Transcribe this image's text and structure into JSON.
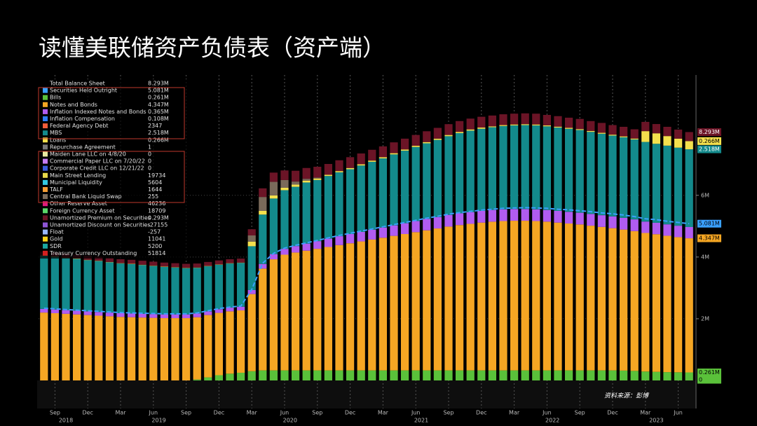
{
  "chart_data": {
    "type": "stacked_bar",
    "title": "读懂美联储资产负债表（资产端）",
    "source": "资料来源：彭博",
    "categories": [
      "2018-08",
      "2018-09",
      "2018-10",
      "2018-11",
      "2018-12",
      "2019-01",
      "2019-02",
      "2019-03",
      "2019-04",
      "2019-05",
      "2019-06",
      "2019-07",
      "2019-08",
      "2019-09",
      "2019-10",
      "2019-11",
      "2019-12",
      "2020-01",
      "2020-02",
      "2020-03",
      "2020-04",
      "2020-05",
      "2020-06",
      "2020-07",
      "2020-08",
      "2020-09",
      "2020-10",
      "2020-11",
      "2020-12",
      "2021-01",
      "2021-02",
      "2021-03",
      "2021-04",
      "2021-05",
      "2021-06",
      "2021-07",
      "2021-08",
      "2021-09",
      "2021-10",
      "2021-11",
      "2021-12",
      "2022-01",
      "2022-02",
      "2022-03",
      "2022-04",
      "2022-05",
      "2022-06",
      "2022-07",
      "2022-08",
      "2022-09",
      "2022-10",
      "2022-11",
      "2022-12",
      "2023-01",
      "2023-02",
      "2023-03",
      "2023-04",
      "2023-05",
      "2023-06",
      "2023-07"
    ],
    "series": [
      {
        "color": "#5ac13a",
        "end_label": "0.261M",
        "values": [
          0,
          0,
          0,
          0,
          0,
          0,
          0,
          0,
          0,
          0,
          0,
          0,
          0,
          0,
          0.03,
          0.1,
          0.17,
          0.22,
          0.25,
          0.3,
          0.326,
          0.326,
          0.326,
          0.326,
          0.326,
          0.326,
          0.326,
          0.326,
          0.326,
          0.326,
          0.326,
          0.326,
          0.326,
          0.326,
          0.326,
          0.326,
          0.326,
          0.326,
          0.326,
          0.326,
          0.326,
          0.326,
          0.326,
          0.326,
          0.326,
          0.326,
          0.326,
          0.326,
          0.326,
          0.326,
          0.326,
          0.326,
          0.326,
          0.32,
          0.31,
          0.29,
          0.28,
          0.27,
          0.265,
          0.261
        ]
      },
      {
        "color": "#f5a623",
        "end_label": "4.347M",
        "values": [
          2.2,
          2.18,
          2.16,
          2.14,
          2.12,
          2.1,
          2.08,
          2.06,
          2.05,
          2.04,
          2.03,
          2.02,
          2.02,
          2.02,
          2.02,
          2.02,
          2.02,
          2.02,
          2.02,
          2.5,
          3.3,
          3.6,
          3.75,
          3.82,
          3.88,
          3.94,
          4.0,
          4.06,
          4.12,
          4.18,
          4.24,
          4.3,
          4.36,
          4.42,
          4.48,
          4.54,
          4.6,
          4.66,
          4.71,
          4.75,
          4.79,
          4.82,
          4.84,
          4.85,
          4.85,
          4.84,
          4.82,
          4.79,
          4.76,
          4.73,
          4.69,
          4.65,
          4.61,
          4.57,
          4.53,
          4.49,
          4.46,
          4.42,
          4.38,
          4.347
        ]
      },
      {
        "color": "#b05cf0",
        "values": [
          0.12,
          0.12,
          0.12,
          0.12,
          0.12,
          0.12,
          0.12,
          0.12,
          0.12,
          0.12,
          0.12,
          0.12,
          0.12,
          0.12,
          0.12,
          0.12,
          0.12,
          0.12,
          0.12,
          0.13,
          0.15,
          0.17,
          0.19,
          0.21,
          0.23,
          0.25,
          0.27,
          0.29,
          0.3,
          0.31,
          0.32,
          0.33,
          0.34,
          0.35,
          0.36,
          0.37,
          0.37,
          0.38,
          0.38,
          0.38,
          0.38,
          0.38,
          0.38,
          0.38,
          0.38,
          0.38,
          0.38,
          0.38,
          0.38,
          0.38,
          0.38,
          0.38,
          0.38,
          0.38,
          0.38,
          0.37,
          0.37,
          0.37,
          0.37,
          0.365
        ]
      },
      {
        "color": "#138a8c",
        "end_label": "2.518M",
        "values": [
          1.72,
          1.71,
          1.69,
          1.68,
          1.66,
          1.65,
          1.63,
          1.61,
          1.6,
          1.58,
          1.56,
          1.54,
          1.52,
          1.5,
          1.48,
          1.46,
          1.44,
          1.43,
          1.42,
          1.42,
          1.6,
          1.8,
          1.9,
          1.92,
          1.98,
          1.98,
          2.03,
          2.07,
          2.1,
          2.15,
          2.2,
          2.24,
          2.3,
          2.35,
          2.4,
          2.45,
          2.5,
          2.55,
          2.6,
          2.64,
          2.66,
          2.68,
          2.7,
          2.71,
          2.72,
          2.72,
          2.71,
          2.7,
          2.69,
          2.68,
          2.66,
          2.64,
          2.62,
          2.61,
          2.59,
          2.58,
          2.56,
          2.55,
          2.53,
          2.518
        ]
      },
      {
        "color": "#f4e04d",
        "end_label": "0.266M",
        "values": [
          0.01,
          0.01,
          0.01,
          0.01,
          0.01,
          0.01,
          0.01,
          0.01,
          0.01,
          0.01,
          0.01,
          0.01,
          0.01,
          0.01,
          0.01,
          0.01,
          0.01,
          0.01,
          0.01,
          0.15,
          0.12,
          0.1,
          0.08,
          0.07,
          0.06,
          0.05,
          0.04,
          0.04,
          0.04,
          0.04,
          0.04,
          0.04,
          0.04,
          0.04,
          0.04,
          0.04,
          0.04,
          0.04,
          0.04,
          0.04,
          0.04,
          0.03,
          0.03,
          0.03,
          0.03,
          0.03,
          0.03,
          0.03,
          0.03,
          0.03,
          0.03,
          0.03,
          0.03,
          0.03,
          0.03,
          0.35,
          0.34,
          0.31,
          0.29,
          0.266
        ]
      },
      {
        "color": "#7a6a5a",
        "values": [
          0,
          0,
          0,
          0,
          0,
          0,
          0,
          0,
          0,
          0,
          0,
          0,
          0,
          0,
          0,
          0,
          0,
          0,
          0,
          0.2,
          0.45,
          0.44,
          0.25,
          0.1,
          0.06,
          0.03,
          0,
          0,
          0,
          0,
          0,
          0,
          0,
          0,
          0,
          0,
          0,
          0,
          0,
          0,
          0,
          0,
          0,
          0,
          0,
          0,
          0,
          0,
          0,
          0,
          0,
          0,
          0,
          0,
          0,
          0,
          0,
          0,
          0,
          0
        ]
      },
      {
        "color": "#6b1426",
        "end_label": "8.293M",
        "values": [
          0.13,
          0.13,
          0.13,
          0.13,
          0.13,
          0.13,
          0.13,
          0.13,
          0.13,
          0.13,
          0.13,
          0.13,
          0.13,
          0.13,
          0.13,
          0.13,
          0.13,
          0.13,
          0.13,
          0.2,
          0.28,
          0.3,
          0.31,
          0.35,
          0.35,
          0.35,
          0.35,
          0.35,
          0.35,
          0.35,
          0.35,
          0.35,
          0.35,
          0.35,
          0.35,
          0.35,
          0.35,
          0.35,
          0.35,
          0.35,
          0.35,
          0.35,
          0.35,
          0.35,
          0.35,
          0.35,
          0.34,
          0.34,
          0.33,
          0.33,
          0.32,
          0.32,
          0.31,
          0.31,
          0.3,
          0.3,
          0.3,
          0.3,
          0.295,
          0.293
        ]
      }
    ],
    "lines": [
      {
        "color": "#3aa0ff",
        "end_label": "5.081M",
        "values": [
          2.34,
          2.32,
          2.3,
          2.28,
          2.26,
          2.24,
          2.22,
          2.2,
          2.19,
          2.18,
          2.17,
          2.16,
          2.16,
          2.16,
          2.19,
          2.26,
          2.33,
          2.38,
          2.41,
          2.95,
          3.8,
          4.12,
          4.29,
          4.38,
          4.46,
          4.54,
          4.62,
          4.7,
          4.77,
          4.84,
          4.91,
          4.98,
          5.05,
          5.12,
          5.19,
          5.26,
          5.32,
          5.39,
          5.44,
          5.48,
          5.52,
          5.55,
          5.58,
          5.59,
          5.6,
          5.59,
          5.58,
          5.55,
          5.53,
          5.5,
          5.47,
          5.43,
          5.4,
          5.36,
          5.31,
          5.24,
          5.21,
          5.16,
          5.12,
          5.081
        ]
      }
    ],
    "baseline_label": {
      "value": 0,
      "label": "0"
    },
    "ylim": [
      0,
      9.9
    ],
    "yticks": [
      {
        "value": 2,
        "label": "2M"
      },
      {
        "value": 4,
        "label": "4M"
      },
      {
        "value": 6,
        "label": "6M"
      }
    ],
    "grid": true,
    "xticks": [
      {
        "value": "2018-09",
        "label": "Sep"
      },
      {
        "value": "2018-12",
        "label": "Dec"
      },
      {
        "value": "2019-03",
        "label": "Mar"
      },
      {
        "value": "2019-06",
        "label": "Jun"
      },
      {
        "value": "2019-09",
        "label": "Sep"
      },
      {
        "value": "2019-12",
        "label": "Dec"
      },
      {
        "value": "2020-03",
        "label": "Mar"
      },
      {
        "value": "2020-06",
        "label": "Jun"
      },
      {
        "value": "2020-09",
        "label": "Sep"
      },
      {
        "value": "2020-12",
        "label": "Dec"
      },
      {
        "value": "2021-03",
        "label": "Mar"
      },
      {
        "value": "2021-06",
        "label": "Jun"
      },
      {
        "value": "2021-09",
        "label": "Sep"
      },
      {
        "value": "2021-12",
        "label": "Dec"
      },
      {
        "value": "2022-03",
        "label": "Mar"
      },
      {
        "value": "2022-06",
        "label": "Jun"
      },
      {
        "value": "2022-09",
        "label": "Sep"
      },
      {
        "value": "2022-12",
        "label": "Dec"
      },
      {
        "value": "2023-03",
        "label": "Mar"
      },
      {
        "value": "2023-06",
        "label": "Jun"
      }
    ],
    "years": [
      "2018",
      "2019",
      "2020",
      "2021",
      "2022",
      "2023"
    ],
    "legend": [
      {
        "name": "Total Balance Sheet",
        "value": "8.293M"
      },
      {
        "name": "Securities Held Outright",
        "value": "5.081M",
        "color": "#3aa0ff"
      },
      {
        "name": "Bills",
        "value": "0.261M",
        "color": "#5ac13a"
      },
      {
        "name": "Notes and Bonds",
        "value": "4.347M",
        "color": "#f5a623"
      },
      {
        "name": "Inflation Indexed Notes and Bonds",
        "value": "0.365M",
        "color": "#b05cf0"
      },
      {
        "name": "Inflation Compensation",
        "value": "0.108M",
        "color": "#2e7cf6"
      },
      {
        "name": "Federal Agency Debt",
        "value": "2347",
        "color": "#f25c3a"
      },
      {
        "name": "MBS",
        "value": "2.518M",
        "color": "#138a8c"
      },
      {
        "name": "Loans",
        "value": "0.266M",
        "color": "#f4e04d"
      },
      {
        "name": "Repurchase Agreement",
        "value": "1",
        "color": "#777777"
      },
      {
        "name": "Maiden Lane LLC on 4/8/20",
        "value": "0",
        "color": "#e8e8a0"
      },
      {
        "name": "Commercial Paper LLC on 7/20/22",
        "value": "0",
        "color": "#c77df3"
      },
      {
        "name": "Corporate Credit LLC on 12/21/22",
        "value": "0",
        "color": "#3b5bdb"
      },
      {
        "name": "Main Street Lending",
        "value": "19734",
        "color": "#e6d94a"
      },
      {
        "name": "Municipal Liquidity",
        "value": "5604",
        "color": "#33c8e0"
      },
      {
        "name": "TALF",
        "value": "1644",
        "color": "#f39c34"
      },
      {
        "name": "Central Bank Liquid Swap",
        "value": "255",
        "color": "#7a6a5a"
      },
      {
        "name": "Other Reserve Asset",
        "value": "46236",
        "color": "#e0197d"
      },
      {
        "name": "Foreign Currency Asset",
        "value": "18709",
        "color": "#5ad66a"
      },
      {
        "name": "Unamortized Premium on Securities",
        "value": "0.293M",
        "color": "#6b1426"
      },
      {
        "name": "Unamortized Discount on Securities",
        "value": "-27155",
        "color": "#8e55d6"
      },
      {
        "name": "Float",
        "value": "-257",
        "color": "#9ab8ff"
      },
      {
        "name": "Gold",
        "value": "11041",
        "color": "#f7d21a"
      },
      {
        "name": "SDR",
        "value": "5200",
        "color": "#1aa7a0"
      },
      {
        "name": "Treasury Currency Outstanding",
        "value": "51814",
        "color": "#d42020"
      }
    ]
  }
}
